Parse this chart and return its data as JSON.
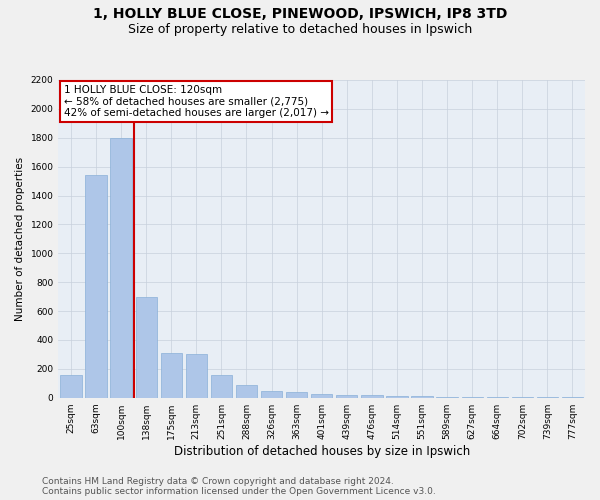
{
  "title": "1, HOLLY BLUE CLOSE, PINEWOOD, IPSWICH, IP8 3TD",
  "subtitle": "Size of property relative to detached houses in Ipswich",
  "xlabel": "Distribution of detached houses by size in Ipswich",
  "ylabel": "Number of detached properties",
  "categories": [
    "25sqm",
    "63sqm",
    "100sqm",
    "138sqm",
    "175sqm",
    "213sqm",
    "251sqm",
    "288sqm",
    "326sqm",
    "363sqm",
    "401sqm",
    "439sqm",
    "476sqm",
    "514sqm",
    "551sqm",
    "589sqm",
    "627sqm",
    "664sqm",
    "702sqm",
    "739sqm",
    "777sqm"
  ],
  "values": [
    160,
    1540,
    1800,
    700,
    310,
    305,
    160,
    90,
    45,
    38,
    28,
    22,
    20,
    15,
    10,
    5,
    2,
    2,
    2,
    2,
    2
  ],
  "bar_color": "#aec6e8",
  "bar_edge_color": "#8ab0d8",
  "vline_color": "#cc0000",
  "vline_x": 2.5,
  "annotation_text": "1 HOLLY BLUE CLOSE: 120sqm\n← 58% of detached houses are smaller (2,775)\n42% of semi-detached houses are larger (2,017) →",
  "annotation_box_color": "#ffffff",
  "annotation_box_edge": "#cc0000",
  "ylim": [
    0,
    2200
  ],
  "yticks": [
    0,
    200,
    400,
    600,
    800,
    1000,
    1200,
    1400,
    1600,
    1800,
    2000,
    2200
  ],
  "grid_color": "#c8d0dc",
  "bg_color": "#e8eef5",
  "fig_bg_color": "#f0f0f0",
  "footer_line1": "Contains HM Land Registry data © Crown copyright and database right 2024.",
  "footer_line2": "Contains public sector information licensed under the Open Government Licence v3.0.",
  "title_fontsize": 10,
  "subtitle_fontsize": 9,
  "xlabel_fontsize": 8.5,
  "ylabel_fontsize": 7.5,
  "tick_fontsize": 6.5,
  "annotation_fontsize": 7.5,
  "footer_fontsize": 6.5
}
